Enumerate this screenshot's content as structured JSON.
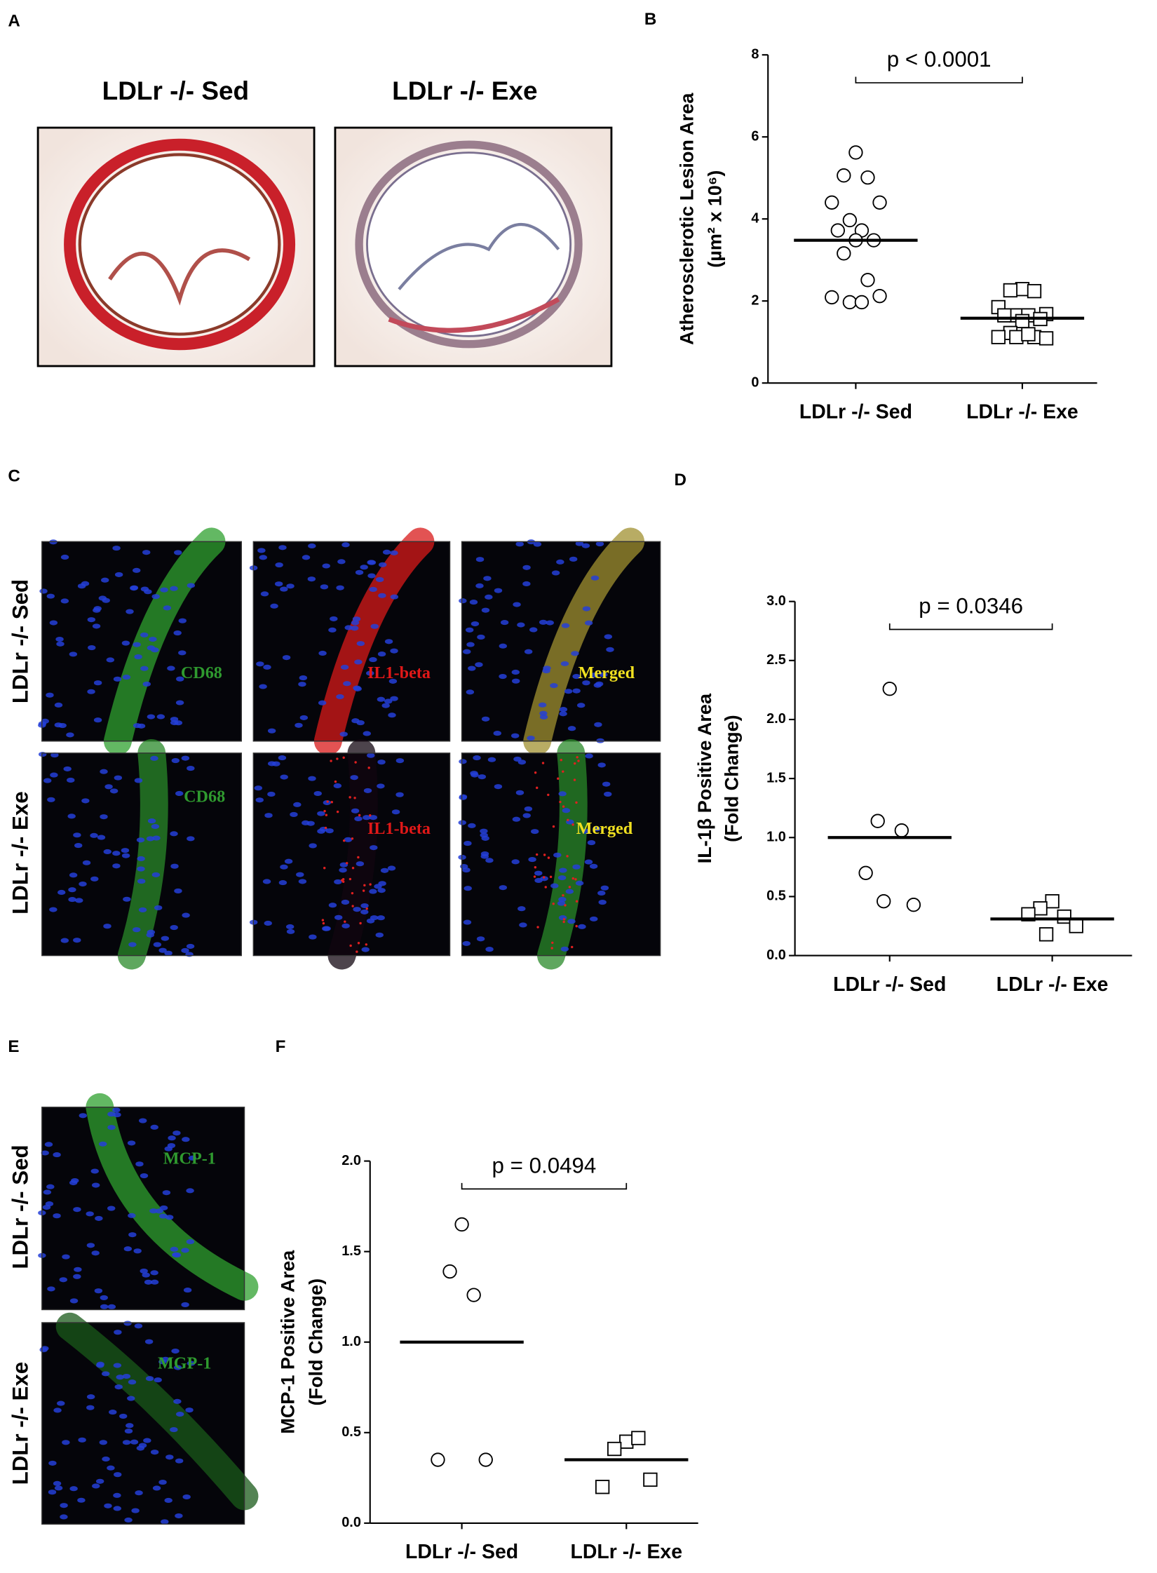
{
  "panels": {
    "A": {
      "label": "A",
      "titles": [
        "LDLr -/- Sed",
        "LDLr -/- Exe"
      ]
    },
    "B": {
      "label": "B"
    },
    "C": {
      "label": "C",
      "rows": [
        "LDLr -/- Sed",
        "LDLr -/- Exe"
      ],
      "stains": [
        [
          "CD68",
          "IL1-beta",
          "Merged"
        ],
        [
          "CD68",
          "IL1-beta",
          "Merged"
        ]
      ]
    },
    "D": {
      "label": "D"
    },
    "E": {
      "label": "E",
      "rows": [
        "LDLr -/- Sed",
        "LDLr -/- Exe"
      ],
      "stains": [
        "MCP-1",
        "MGP-1"
      ]
    },
    "F": {
      "label": "F"
    }
  },
  "chart_data": [
    {
      "type": "scatter",
      "y_label": [
        "Atherosclerotic Lesion Area",
        "(µm² x 10⁶)"
      ],
      "annotation": "p < 0.0001",
      "categories": [
        "LDLr -/- Sed",
        "LDLr -/- Exe"
      ],
      "series": [
        {
          "marker": "circle",
          "color": "#000000",
          "values": [
            5.62,
            5.06,
            5.01,
            4.4,
            4.4,
            3.97,
            3.72,
            3.72,
            3.48,
            3.48,
            3.16,
            2.51,
            2.09,
            2.12,
            1.97,
            1.97
          ],
          "mean": 3.48
        },
        {
          "marker": "square",
          "color": "#000000",
          "values": [
            2.29,
            2.26,
            2.24,
            1.85,
            1.68,
            1.65,
            1.65,
            1.65,
            1.56,
            1.51,
            1.22,
            1.12,
            1.12,
            1.09,
            1.12,
            1.19
          ],
          "mean": 1.58
        }
      ],
      "ylim": [
        0,
        8
      ],
      "yticks": [
        0,
        2,
        4,
        6,
        8
      ]
    },
    {
      "type": "scatter",
      "y_label": [
        "IL-1β Positive Area",
        "(Fold Change)"
      ],
      "annotation": "p = 0.0346",
      "categories": [
        "LDLr -/- Sed",
        "LDLr -/- Exe"
      ],
      "series": [
        {
          "marker": "circle",
          "color": "#000000",
          "values": [
            2.26,
            1.14,
            1.06,
            0.7,
            0.43,
            0.46
          ],
          "mean": 1.0
        },
        {
          "marker": "square",
          "color": "#000000",
          "values": [
            0.46,
            0.4,
            0.33,
            0.35,
            0.25,
            0.18
          ],
          "mean": 0.31
        }
      ],
      "ylim": [
        0,
        3
      ],
      "yticks": [
        {
          "value": 0,
          "label": "0.0"
        },
        0.5,
        {
          "value": 1,
          "label": "1.0"
        },
        1.5,
        {
          "value": 2,
          "label": "2.0"
        },
        2.5,
        {
          "value": 3,
          "label": "3.0"
        }
      ]
    },
    {
      "type": "scatter",
      "y_label": [
        "MCP-1 Positive Area",
        "(Fold Change)"
      ],
      "annotation": "p = 0.0494",
      "categories": [
        "LDLr -/- Sed",
        "LDLr -/- Exe"
      ],
      "series": [
        {
          "marker": "circle",
          "color": "#000000",
          "values": [
            1.65,
            1.39,
            1.26,
            0.35,
            0.35
          ],
          "mean": 1.0
        },
        {
          "marker": "square",
          "color": "#000000",
          "values": [
            0.45,
            0.41,
            0.47,
            0.2,
            0.24
          ],
          "mean": 0.35
        }
      ],
      "ylim": [
        0,
        2
      ],
      "yticks": [
        {
          "value": 0,
          "label": "0.0"
        },
        0.5,
        {
          "value": 1,
          "label": "1.0"
        },
        1.5,
        {
          "value": 2,
          "label": "2.0"
        }
      ]
    }
  ]
}
